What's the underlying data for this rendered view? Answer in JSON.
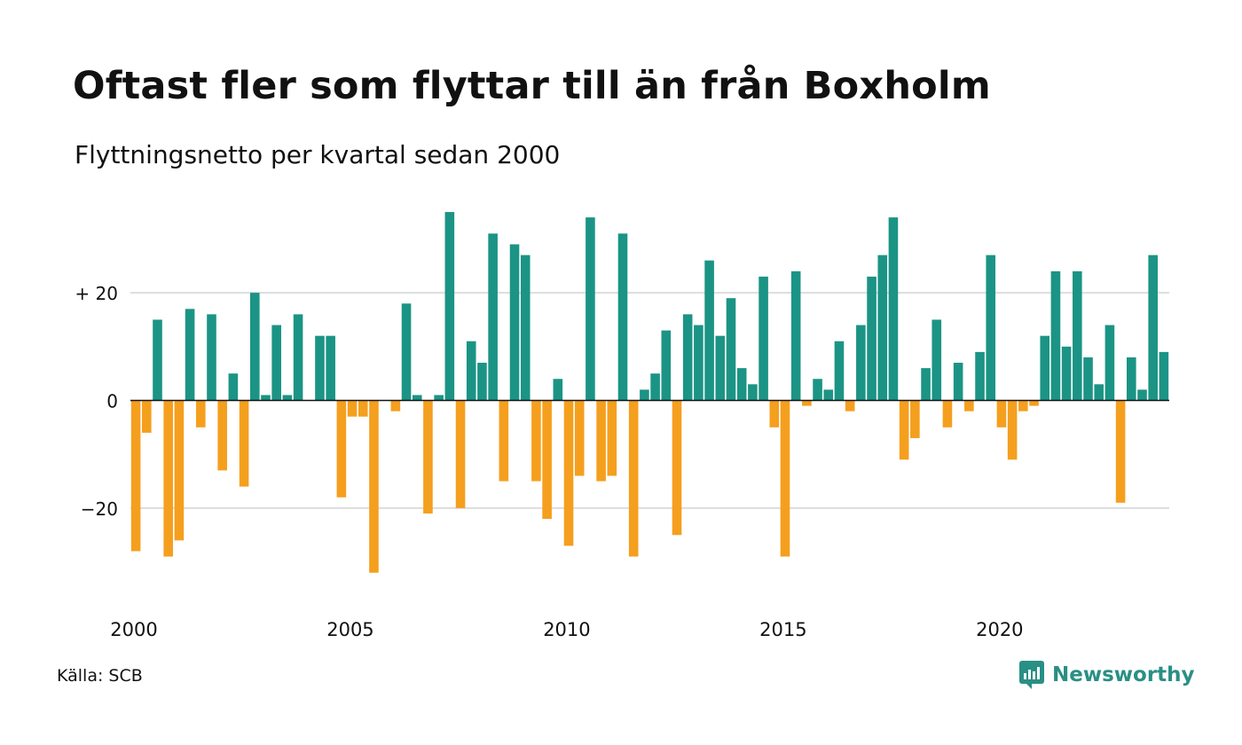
{
  "title": "Oftast fler som flyttar till än från Boxholm",
  "subtitle": "Flyttningsnetto per kvartal sedan 2000",
  "source": "Källa: SCB",
  "brand": {
    "name": "Newsworthy",
    "icon": "newsworthy-logo-icon"
  },
  "colors": {
    "positive": "#1b9485",
    "negative": "#f59f1e",
    "grid": "#dddddd",
    "axis": "#111111"
  },
  "chart_data": {
    "type": "bar",
    "title": "Oftast fler som flyttar till än från Boxholm",
    "subtitle": "Flyttningsnetto per kvartal sedan 2000",
    "xlabel": "",
    "ylabel": "",
    "x_start": "2000",
    "x_interval": "quarter",
    "x_tick_labels": [
      "2000",
      "2005",
      "2010",
      "2015",
      "2020"
    ],
    "y_ticks": [
      20,
      0,
      -20
    ],
    "y_tick_labels": [
      "+ 20",
      "0",
      "−20"
    ],
    "ylim": [
      -38,
      38
    ],
    "grid": true,
    "values": [
      -28,
      -6,
      15,
      -29,
      -26,
      17,
      -5,
      16,
      -13,
      5,
      -16,
      20,
      1,
      14,
      1,
      16,
      0,
      12,
      12,
      -18,
      -3,
      -3,
      -32,
      0,
      -2,
      18,
      1,
      -21,
      1,
      35,
      -20,
      11,
      7,
      31,
      -15,
      29,
      27,
      -15,
      -22,
      4,
      -27,
      -14,
      34,
      -15,
      -14,
      31,
      -29,
      2,
      5,
      13,
      -25,
      16,
      14,
      26,
      12,
      19,
      6,
      3,
      23,
      -5,
      -29,
      24,
      -1,
      4,
      2,
      11,
      -2,
      14,
      23,
      27,
      34,
      -11,
      -7,
      6,
      15,
      -5,
      7,
      -2,
      9,
      27,
      -5,
      -11,
      -2,
      -1,
      12,
      24,
      10,
      24,
      8,
      3,
      14,
      -19,
      8,
      2,
      27,
      9
    ]
  }
}
